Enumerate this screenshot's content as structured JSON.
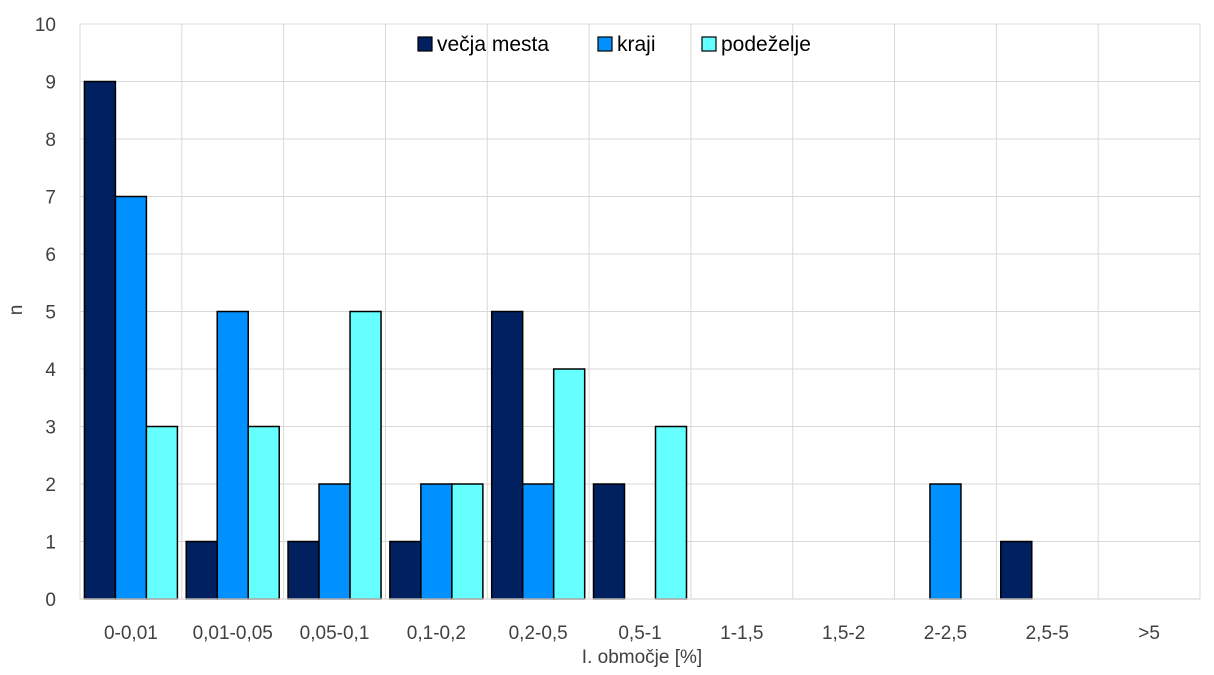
{
  "chart_data": {
    "type": "bar",
    "categories": [
      "0-0,01",
      "0,01-0,05",
      "0,05-0,1",
      "0,1-0,2",
      "0,2-0,5",
      "0,5-1",
      "1-1,5",
      "1,5-2",
      "2-2,5",
      "2,5-5",
      ">5"
    ],
    "series": [
      {
        "name": "večja mesta",
        "color": "#002060",
        "values": [
          9,
          1,
          1,
          1,
          5,
          2,
          0,
          0,
          0,
          1,
          0
        ]
      },
      {
        "name": "kraji",
        "color": "#0090FF",
        "values": [
          7,
          5,
          2,
          2,
          2,
          0,
          0,
          0,
          2,
          0,
          0
        ]
      },
      {
        "name": "podeželje",
        "color": "#66FFFF",
        "values": [
          3,
          3,
          5,
          2,
          4,
          3,
          0,
          0,
          0,
          0,
          0
        ]
      }
    ],
    "xlabel": "I. območje [%]",
    "ylabel": "n",
    "ylim": [
      0,
      10
    ],
    "yticks": [
      0,
      1,
      2,
      3,
      4,
      5,
      6,
      7,
      8,
      9,
      10
    ],
    "grid": true,
    "legend": "top-center"
  }
}
